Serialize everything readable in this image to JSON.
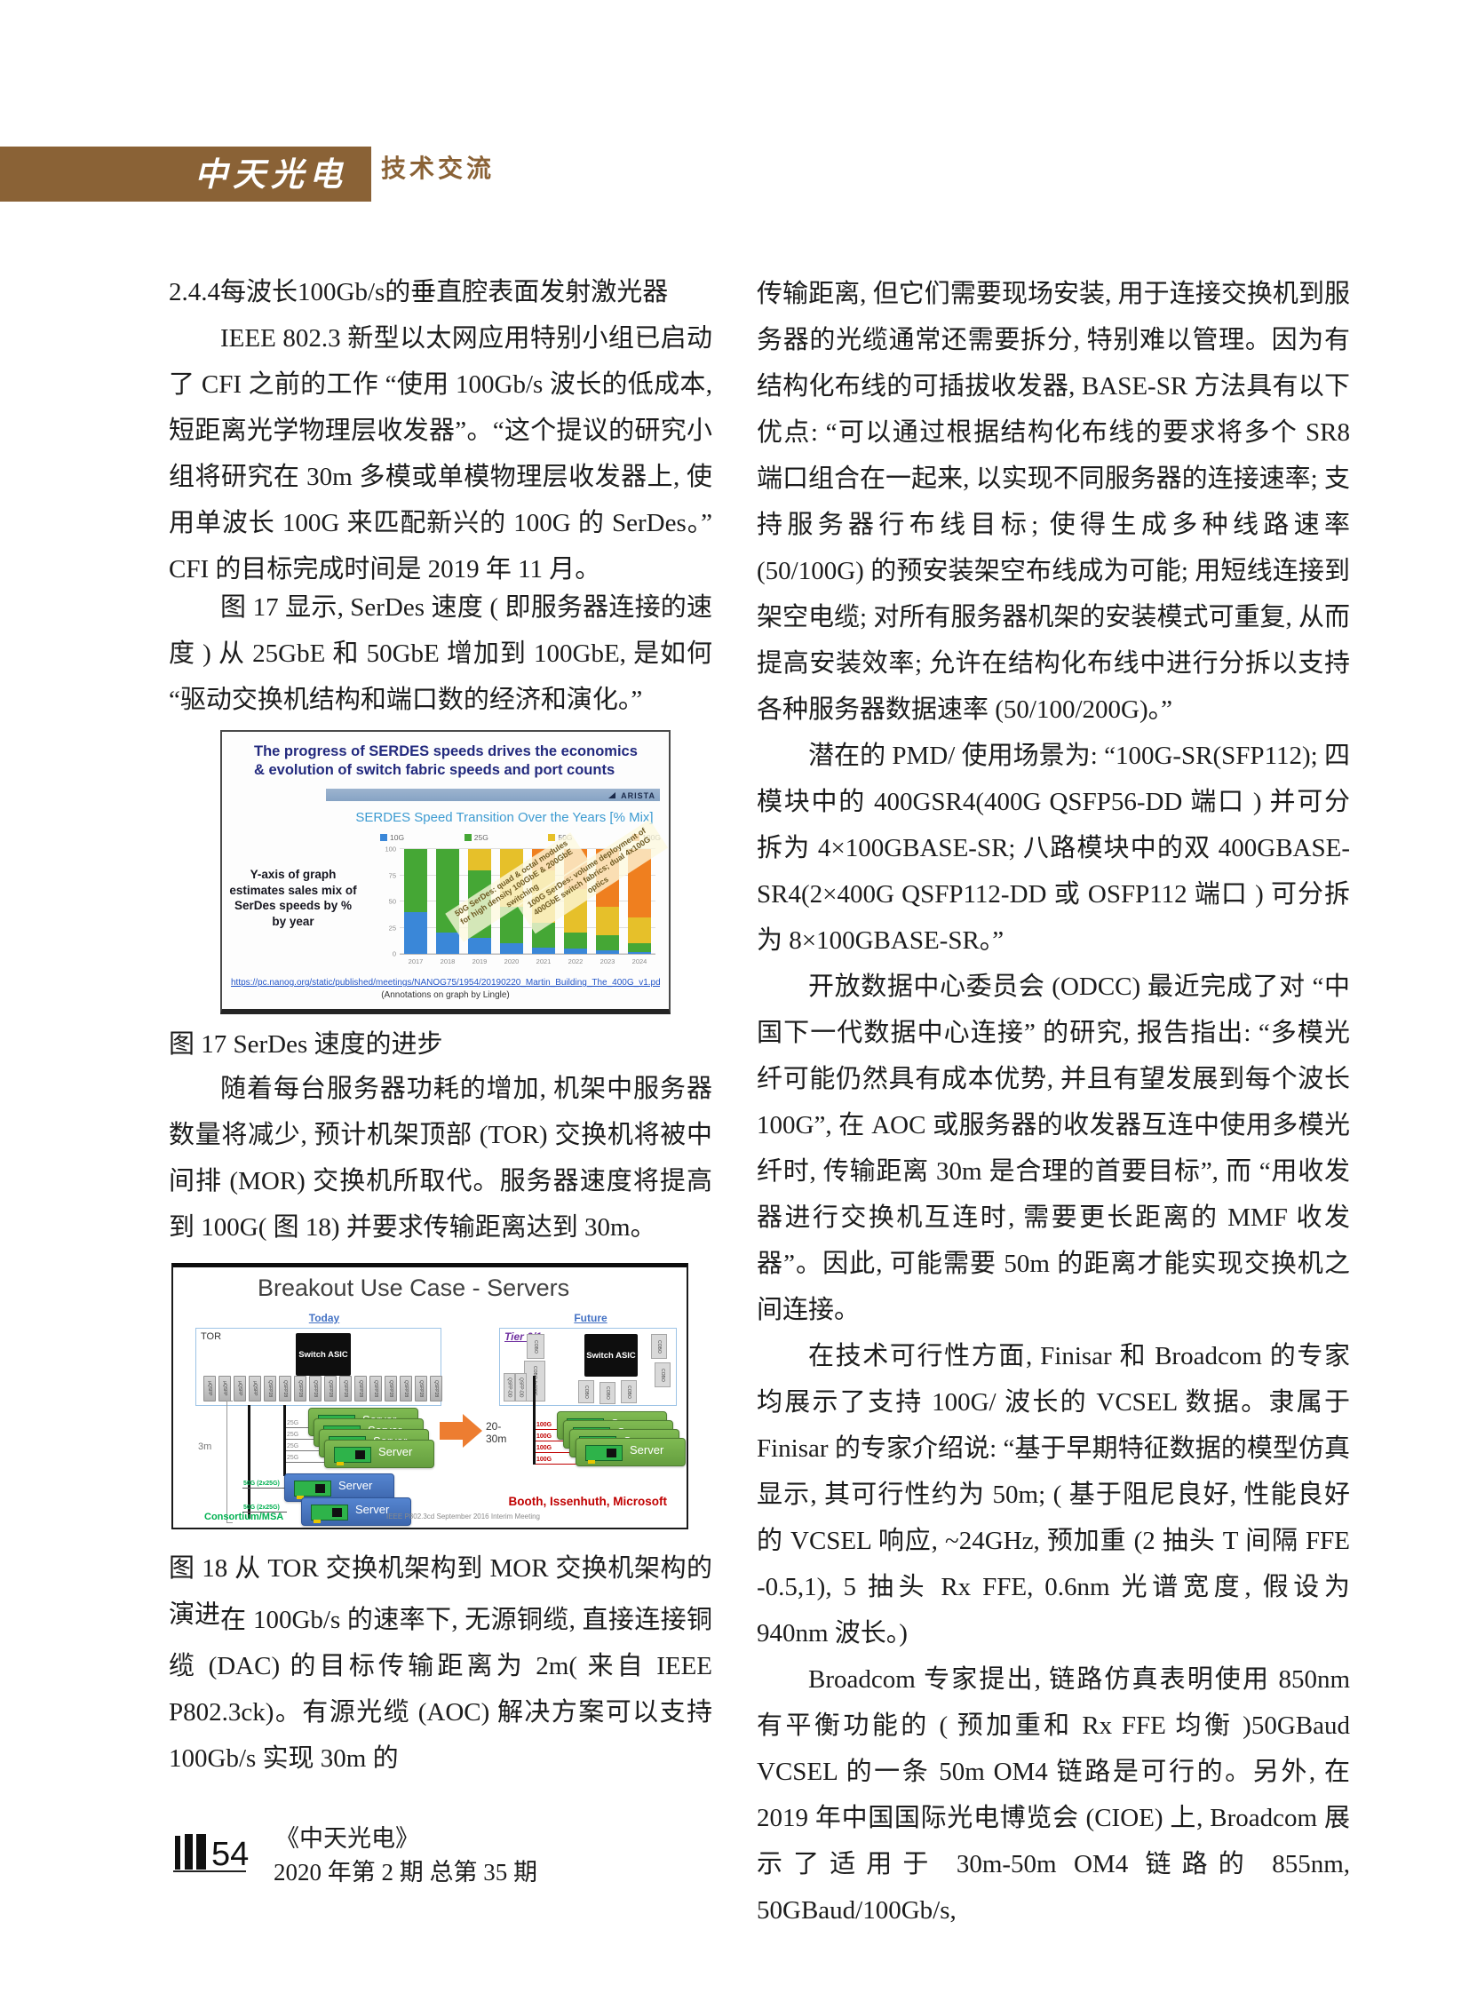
{
  "header": {
    "logo": "中天光电",
    "section_tab": "技术交流"
  },
  "left_column": {
    "heading": "2.4.4每波长100Gb/s的垂直腔表面发射激光器",
    "para_ieee": "IEEE 802.3 新型以太网应用特别小组已启动了 CFI 之前的工作 “使用 100Gb/s 波长的低成本, 短距离光学物理层收发器”。“这个提议的研究小组将研究在 30m 多模或单模物理层收发器上, 使用单波长 100G 来匹配新兴的 100G 的 SerDes。”  CFI 的目标完成时间是 2019 年 11 月。",
    "para_fig17": "图 17 显示, SerDes 速度 ( 即服务器连接的速度 ) 从 25GbE 和 50GbE 增加到 100GbE, 是如何 “驱动交换机结构和端口数的经济和演化。”",
    "fig17_caption": "图 17  SerDes 速度的进步",
    "para_tor_mor": "随着每台服务器功耗的增加, 机架中服务器数量将减少, 预计机架顶部 (TOR) 交换机将被中间排 (MOR) 交换机所取代。服务器速度将提高到 100G( 图 18) 并要求传输距离达到 30m。",
    "fig18_caption": "图 18 从 TOR 交换机架构到 MOR 交换机架构的演进",
    "para_dac": "在 100Gb/s 的速率下, 无源铜缆, 直接连接铜缆 (DAC) 的目标传输距离为 2m( 来自 IEEE P802.3ck)。有源光缆 (AOC) 解决方案可以支持 100Gb/s 实现 30m 的"
  },
  "right_column": {
    "para_base_sr": "传输距离, 但它们需要现场安装, 用于连接交换机到服务器的光缆通常还需要拆分, 特别难以管理。因为有结构化布线的可插拔收发器, BASE-SR 方法具有以下优点: “可以通过根据结构化布线的要求将多个 SR8 端口组合在一起来, 以实现不同服务器的连接速率; 支持服务器行布线目标; 使得生成多种线路速率 (50/100G) 的预安装架空布线成为可能; 用短线连接到架空电缆; 对所有服务器机架的安装模式可重复, 从而提高安装效率; 允许在结构化布线中进行分拆以支持各种服务器数据速率 (50/100/200G)。”",
    "para_pmd": "潜在的 PMD/ 使用场景为: “100G-SR(SFP112); 四模块中的 400GSR4(400G QSFP56-DD 端口 ) 并可分拆为 4×100GBASE-SR; 八路模块中的双 400GBASE-SR4(2×400G QSFP112-DD 或 OSFP112 端口 ) 可分拆为 8×100GBASE-SR。”",
    "para_odcc": "开放数据中心委员会 (ODCC) 最近完成了对 “中国下一代数据中心连接” 的研究, 报告指出: “多模光纤可能仍然具有成本优势, 并且有望发展到每个波长 100G”, 在 AOC 或服务器的收发器互连中使用多模光纤时, 传输距离 30m 是合理的首要目标”, 而 “用收发器进行交换机互连时, 需要更长距离的 MMF 收发器”。因此, 可能需要 50m 的距离才能实现交换机之间连接。",
    "para_vcsel": "在技术可行性方面, Finisar 和 Broadcom 的专家均展示了支持 100G/ 波长的 VCSEL 数据。隶属于 Finisar 的专家介绍说: “基于早期特征数据的模型仿真显示, 其可行性约为 50m; ( 基于阻尼良好, 性能良好的 VCSEL 响应, ~24GHz, 预加重 (2 抽头 T 间隔 FFE -0.5,1), 5 抽头 Rx FFE, 0.6nm 光谱宽度, 假设为 940nm 波长。)",
    "para_broadcom": "Broadcom 专家提出, 链路仿真表明使用 850nm 有平衡功能的 ( 预加重和 Rx FFE 均衡 )50GBaud VCSEL 的一条 50m OM4 链路是可行的。另外, 在 2019 年中国国际光电博览会 (CIOE) 上, Broadcom 展示了适用于 30m-50m OM4 链路的 855nm, 50GBaud/100Gb/s,"
  },
  "figure17": {
    "title": "The progress of SERDES speeds drives the economics & evolution of switch fabric speeds and port counts",
    "brand": "ARISTA",
    "side_note": "Y-axis of graph estimates sales mix of SerDes speeds by % by year",
    "annotation_50g": "50G SerDes: quad & octal modules for high density 100GbE & 200GbE switching",
    "annotation_100g": "100G SerDes: volume deployment of 400GbE switch fabrics; dual 4x100G optics",
    "source_url": "https://pc.nanog.org/static/published/meetings/NANOG75/1954/20190220_Martin_Building_The_400G_v1.pdf",
    "source_credit": "(Annotations on graph by Lingle)",
    "chart_data": {
      "type": "bar",
      "stacked": true,
      "title": "SERDES Speed Transition Over the Years [% Mix]",
      "categories": [
        "2017",
        "2018",
        "2019",
        "2020",
        "2021",
        "2022",
        "2023",
        "2024"
      ],
      "series": [
        {
          "name": "10G",
          "color": "#3a87d8",
          "values": [
            40,
            20,
            15,
            10,
            6,
            5,
            3,
            2
          ]
        },
        {
          "name": "25G",
          "color": "#45a735",
          "values": [
            60,
            80,
            65,
            35,
            24,
            15,
            15,
            8
          ]
        },
        {
          "name": "50G",
          "color": "#e6c02a",
          "values": [
            0,
            0,
            20,
            55,
            50,
            42,
            27,
            25
          ]
        },
        {
          "name": "100G",
          "color": "#ef7f1f",
          "values": [
            0,
            0,
            0,
            0,
            20,
            38,
            55,
            65
          ]
        }
      ],
      "xlabel": "",
      "ylabel": "% Mix",
      "ylim": [
        0,
        100
      ],
      "yticks": [
        0,
        25,
        50,
        75,
        100
      ],
      "grid": true,
      "legend_position": "top"
    }
  },
  "figure18": {
    "title": "Breakout Use Case - Servers",
    "today_label": "Today",
    "future_label": "Future",
    "tor_label": "TOR",
    "tier_label": "Tier 0/1",
    "switch_asic": "Switch ASIC",
    "tor_ports": [
      "μQSFP",
      "μQSFP",
      "μQSFP",
      "μQSFP",
      "QSFP28",
      "QSFP28",
      "QSFP28",
      "QSFP28",
      "QSFP28",
      "QSFP28",
      "QSFP28",
      "QSFP28",
      "QSFP28",
      "QSFP28",
      "QSFP28",
      "QSFP28"
    ],
    "cobo_label": "COBO",
    "cobo_breakout_label": "COBO 4x100G",
    "qsfp_dd_label": "QSFP-DD",
    "distance_3m": "3m",
    "distance_20_30m": "20-30m",
    "server_label": "Server",
    "links_25g": [
      "25G",
      "25G",
      "25G",
      "25G"
    ],
    "links_50g": [
      "50G (2x25G)",
      "50G (2x25G)"
    ],
    "links_100g": [
      "100G",
      "100G",
      "100G",
      "100G"
    ],
    "consortium": "Consortium/MSA",
    "ieee_note": "IEEE P802.3cd September 2016 Interim Meeting",
    "credit": "Booth, Issenhuth, Microsoft"
  },
  "footer": {
    "page_number": "54",
    "journal_name": "《中天光电》",
    "issue_info": "2020 年第 2 期 总第 35 期"
  },
  "colors": {
    "header_brown": "#8a6236",
    "link_blue": "#2456c9",
    "credit_red": "#c00000",
    "consortium_green": "#00b050",
    "arrow_orange": "#ed7d31",
    "era_label_blue": "#4472c4",
    "tier_purple": "#7030a0"
  }
}
